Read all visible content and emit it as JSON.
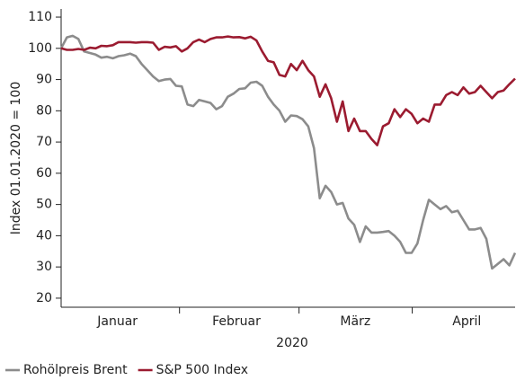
{
  "chart_data": {
    "type": "line",
    "ylabel": "Index 01.01.2020 = 100",
    "xlabel": "2020",
    "x": [
      0,
      1,
      2,
      3,
      4,
      5,
      6,
      7,
      8,
      9,
      10,
      11,
      12,
      13,
      14,
      15,
      16,
      17,
      18,
      19,
      20,
      21,
      22,
      23,
      24,
      25,
      26,
      27,
      28,
      29,
      30,
      31,
      32,
      33,
      34,
      35,
      36,
      37,
      38,
      39,
      40,
      41,
      42,
      43,
      44,
      45,
      46,
      47,
      48,
      49,
      50,
      51,
      52,
      53,
      54,
      55,
      56,
      57,
      58,
      59,
      60,
      61,
      62,
      63,
      64,
      65,
      66,
      67,
      68,
      69,
      70,
      71,
      72,
      73,
      74,
      75,
      76,
      77,
      78,
      79
    ],
    "xlim": [
      0,
      79
    ],
    "xticks": [
      {
        "value": 20.6,
        "label": null
      },
      {
        "value": 41.4,
        "label": null
      },
      {
        "value": 61.1,
        "label": null
      }
    ],
    "xtick_labels": [
      {
        "value": 9.8,
        "label": "Januar"
      },
      {
        "value": 30.5,
        "label": "Februar"
      },
      {
        "value": 51.2,
        "label": "März"
      },
      {
        "value": 70.6,
        "label": "April"
      }
    ],
    "ylim": [
      17.1,
      112.6
    ],
    "yticks": [
      20,
      30,
      40,
      50,
      60,
      70,
      80,
      90,
      100,
      110
    ],
    "legend": "bottom-left",
    "series": [
      {
        "name": "Rohölpreis Brent",
        "color": "#8c8c8c",
        "values": [
          100,
          103.5,
          104,
          103,
          99,
          98.5,
          98,
          97,
          97.3,
          96.8,
          97.5,
          97.8,
          98.3,
          97.5,
          95,
          93,
          91,
          89.5,
          90,
          90.2,
          88,
          87.8,
          82,
          81.5,
          83.5,
          83,
          82.5,
          80.5,
          81.5,
          84.5,
          85.5,
          87,
          87.2,
          89,
          89.3,
          88,
          84.5,
          82,
          80,
          76.5,
          78.5,
          78.3,
          77.3,
          75,
          68,
          52,
          56,
          54,
          50,
          50.5,
          45.5,
          43.5,
          38,
          43,
          41,
          41,
          41.2,
          41.5,
          40,
          38,
          34.5,
          34.5,
          37.5,
          45,
          51.5,
          50,
          48.5,
          49.5,
          47.5,
          48,
          45,
          42,
          42,
          42.5,
          39,
          29.5,
          31,
          32.5,
          30.5,
          34.5
        ]
      },
      {
        "name": "S&P 500 Index",
        "color": "#9b1b30",
        "values": [
          100,
          99.5,
          99.5,
          99.8,
          99.5,
          100.2,
          100,
          100.8,
          100.7,
          101,
          102,
          102,
          102,
          101.8,
          102,
          102,
          101.8,
          99.5,
          100.5,
          100.3,
          100.7,
          99,
          100,
          102,
          102.8,
          102,
          103,
          103.5,
          103.5,
          103.8,
          103.5,
          103.6,
          103.2,
          103.7,
          102.5,
          99,
          96,
          95.5,
          91.5,
          91,
          95,
          93,
          96,
          93,
          91,
          84.5,
          88.5,
          84,
          76.5,
          83,
          73.5,
          77.5,
          73.5,
          73.5,
          71,
          69,
          75,
          76,
          80.5,
          78,
          80.5,
          79,
          76,
          77.5,
          76.5,
          82,
          82,
          85,
          86,
          85,
          87.5,
          85.5,
          86,
          88,
          86,
          84,
          86,
          86.5,
          88.5,
          90.3
        ]
      }
    ]
  }
}
